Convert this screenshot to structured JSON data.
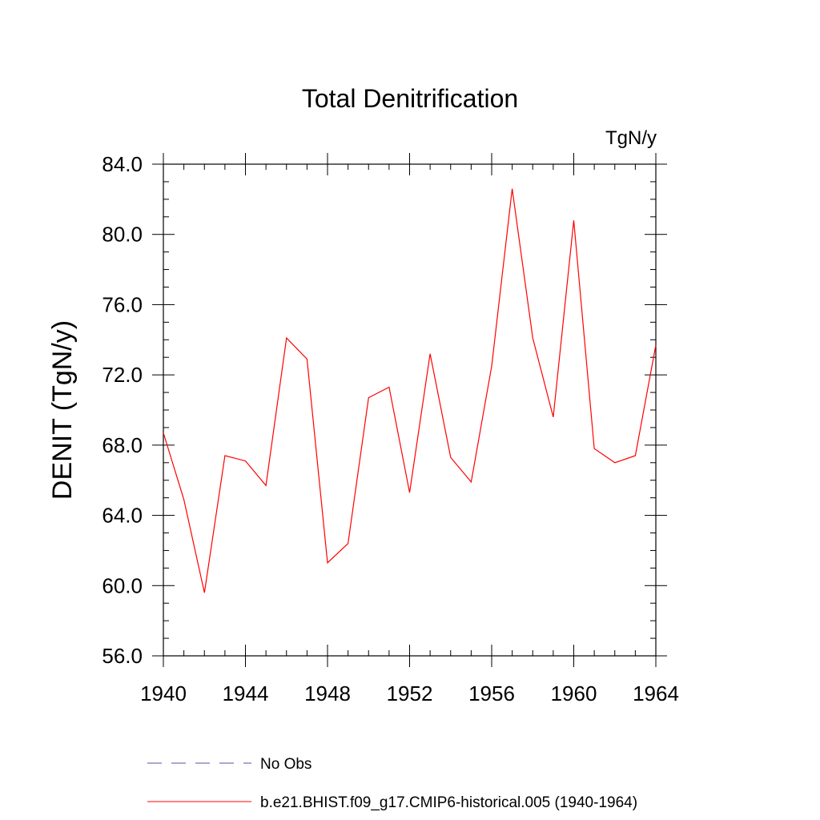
{
  "chart_data": {
    "type": "line",
    "title": "Total Denitrification",
    "units_label": "TgN/y",
    "ylabel": "DENIT  (TgN/y)",
    "xlabel": "",
    "xlim": [
      1940,
      1964
    ],
    "ylim": [
      56.0,
      84.0
    ],
    "x_ticks": [
      "1940",
      "1944",
      "1948",
      "1952",
      "1956",
      "1960",
      "1964"
    ],
    "y_ticks": [
      "56.0",
      "60.0",
      "64.0",
      "68.0",
      "72.0",
      "76.0",
      "80.0",
      "84.0"
    ],
    "grid": false,
    "legend_placement": "bottom",
    "legend": [
      {
        "label": "No Obs",
        "color": "#5a4fa0",
        "style": "dashed"
      },
      {
        "label": "b.e21.BHIST.f09_g17.CMIP6-historical.005 (1940-1964)",
        "color": "#ff0000",
        "style": "solid"
      }
    ],
    "x": [
      1940,
      1941,
      1942,
      1943,
      1944,
      1945,
      1946,
      1947,
      1948,
      1949,
      1950,
      1951,
      1952,
      1953,
      1954,
      1955,
      1956,
      1957,
      1958,
      1959,
      1960,
      1961,
      1962,
      1963,
      1964
    ],
    "series": [
      {
        "name": "b.e21.BHIST.f09_g17.CMIP6-historical.005 (1940-1964)",
        "color": "#ff0000",
        "values": [
          68.7,
          64.9,
          59.6,
          67.4,
          67.1,
          65.7,
          74.1,
          72.9,
          61.3,
          62.4,
          70.7,
          71.3,
          65.3,
          73.2,
          67.3,
          65.9,
          72.5,
          82.6,
          74.1,
          69.6,
          80.8,
          67.8,
          67.0,
          67.4,
          73.7
        ]
      }
    ]
  }
}
